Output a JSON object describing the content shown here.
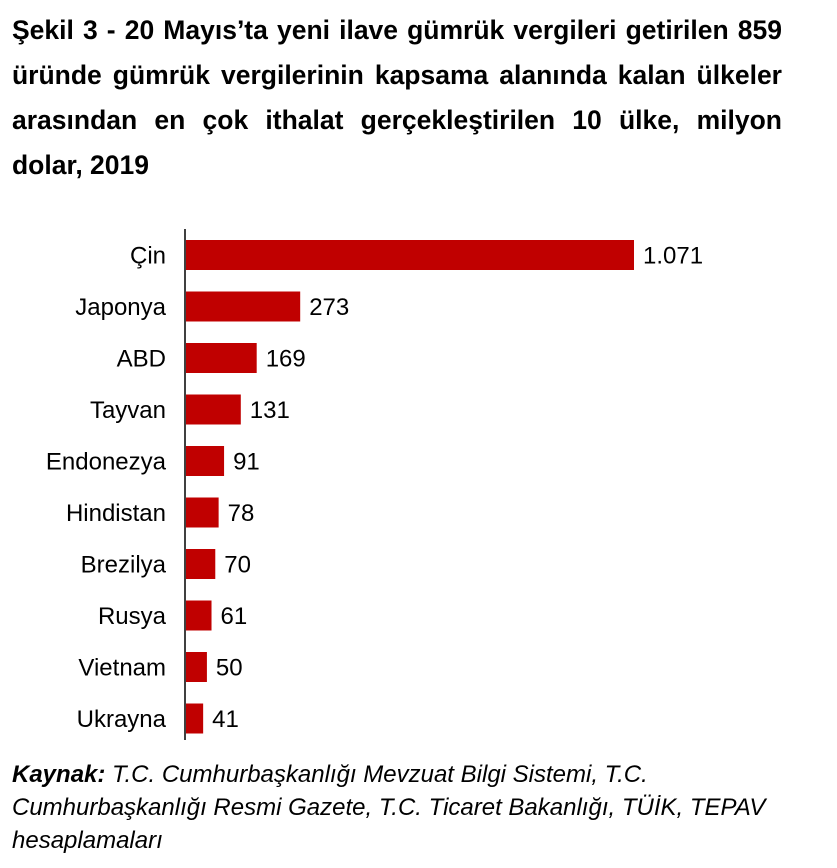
{
  "title": "Şekil 3 - 20 Mayıs’ta yeni ilave gümrük vergileri getirilen 859 üründe gümrük vergilerinin kapsama alanında kalan ülkeler arasından en çok ithalat gerçekleştirilen 10 ülke, milyon dolar, 2019",
  "chart_data": {
    "type": "bar",
    "orientation": "horizontal",
    "categories": [
      "Çin",
      "Japonya",
      "ABD",
      "Tayvan",
      "Endonezya",
      "Hindistan",
      "Brezilya",
      "Rusya",
      "Vietnam",
      "Ukrayna"
    ],
    "values": [
      1071,
      273,
      169,
      131,
      91,
      78,
      70,
      61,
      50,
      41
    ],
    "value_labels": [
      "1.071",
      "273",
      "169",
      "131",
      "91",
      "78",
      "70",
      "61",
      "50",
      "41"
    ],
    "bar_color": "#c00000",
    "xlim": [
      0,
      1071
    ],
    "xlabel": "",
    "ylabel": ""
  },
  "source": {
    "label": "Kaynak:",
    "text": " T.C. Cumhurbaşkanlığı Mevzuat Bilgi Sistemi, T.C. Cumhurbaşkanlığı Resmi Gazete, T.C. Ticaret Bakanlığı, TÜİK, TEPAV hesaplamaları"
  }
}
